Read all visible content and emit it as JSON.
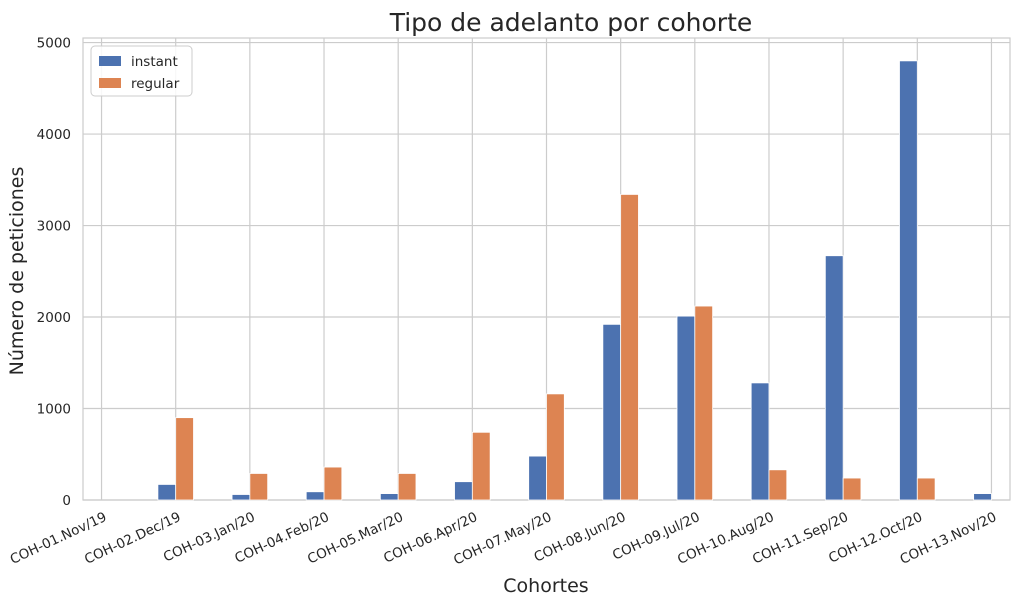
{
  "chart_data": {
    "type": "bar",
    "title": "Tipo de adelanto por cohorte",
    "xlabel": "Cohortes",
    "ylabel": "Número de peticiones",
    "categories": [
      "COH-01.Nov/19",
      "COH-02.Dec/19",
      "COH-03.Jan/20",
      "COH-04.Feb/20",
      "COH-05.Mar/20",
      "COH-06.Apr/20",
      "COH-07.May/20",
      "COH-08.Jun/20",
      "COH-09.Jul/20",
      "COH-10.Aug/20",
      "COH-11.Sep/20",
      "COH-12.Oct/20",
      "COH-13.Nov/20"
    ],
    "series": [
      {
        "name": "instant",
        "color": "#4c72b0",
        "values": [
          0,
          170,
          60,
          90,
          70,
          200,
          480,
          1920,
          2010,
          1280,
          2670,
          4800,
          70
        ]
      },
      {
        "name": "regular",
        "color": "#dd8452",
        "values": [
          0,
          900,
          290,
          360,
          290,
          740,
          1160,
          3340,
          2120,
          330,
          240,
          240,
          0
        ]
      }
    ],
    "ylim": [
      0,
      5050
    ],
    "yticks": [
      0,
      1000,
      2000,
      3000,
      4000,
      5000
    ],
    "grid": true,
    "legend_position": "top-left"
  }
}
